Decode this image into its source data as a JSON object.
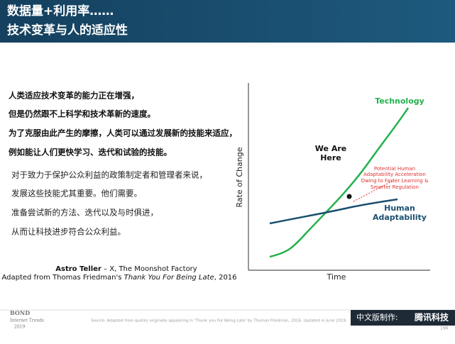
{
  "header": {
    "title": [
      "数据量+利用率……",
      "技术变革与人的适应性"
    ]
  },
  "body": {
    "bold_lines": [
      "人类适应技术变革的能力正在增强，",
      "但是仍然跟不上科学和技术革新的速度。",
      "为了克服由此产生的摩擦，人类可以通过发展新的技能来适应，",
      "例如能让人们更快学习、迭代和试验的技能。"
    ],
    "lines": [
      "对于致力于保护公众利益的政策制定者和管理者来说，",
      "发展这些技能尤其重要。他们需要。",
      "准备尝试新的方法、迭代以及与时俱进，",
      "从而让科技进步符合公众利益。"
    ],
    "attribution": {
      "name": "Astro Teller",
      "org": " – X, The Moonshot Factory",
      "prefix": "Adapted from Thomas Friedman's ",
      "book": "Thank You For Being Late",
      "suffix": ", 2016"
    }
  },
  "diagram": {
    "y_label": "Rate of Change",
    "x_label": "Time",
    "technology": "Technology",
    "here": [
      "We Are",
      "Here"
    ],
    "potential": [
      "Potential Human",
      "Adaptability Acceleration",
      "Owing to Faster Learning &",
      "Smarter Regulation"
    ],
    "human": [
      "Human",
      "Adaptability"
    ]
  },
  "footer": {
    "brand": [
      "BOND",
      "Internet Trends",
      "2019"
    ],
    "source": "Source: Adapted from quotes originally appearing in 'Thank you For Being Late' by Thomas Friedman, 2016. Updated in June 2019.",
    "page": "196",
    "made_by": "中文版制作:",
    "maker": "腾讯科技"
  }
}
